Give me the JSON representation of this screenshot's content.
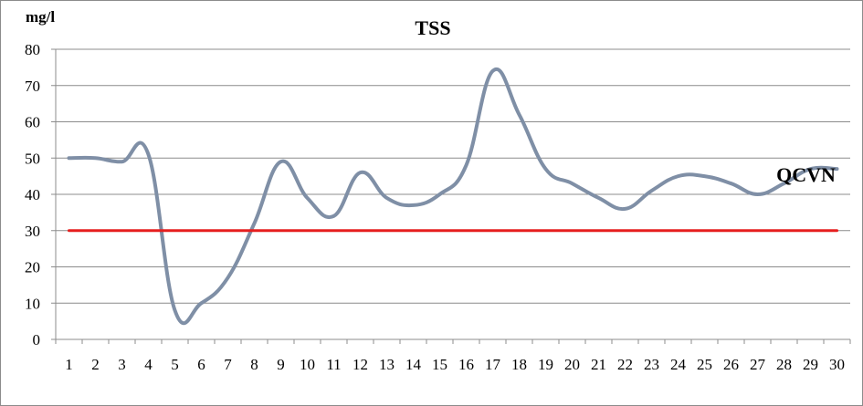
{
  "chart_data": {
    "type": "line",
    "title": "TSS",
    "ylabel": "mg/l",
    "xlabel": "",
    "ylim": [
      0,
      80
    ],
    "yticks": [
      0,
      10,
      20,
      30,
      40,
      50,
      60,
      70,
      80
    ],
    "x": [
      1,
      2,
      3,
      4,
      5,
      6,
      7,
      8,
      9,
      10,
      11,
      12,
      13,
      14,
      15,
      16,
      17,
      18,
      19,
      20,
      21,
      22,
      23,
      24,
      25,
      26,
      27,
      28,
      29,
      30
    ],
    "grid": true,
    "legend": "none",
    "series": [
      {
        "values": [
          50,
          50,
          49,
          51,
          8,
          10,
          17,
          32,
          49,
          39,
          34,
          46,
          39,
          37,
          40,
          48,
          74,
          62,
          47,
          43,
          39,
          36,
          41,
          45,
          45,
          43,
          40,
          43,
          47,
          47
        ],
        "color": "#7f8fa6"
      },
      {
        "values": [
          30,
          30,
          30,
          30,
          30,
          30,
          30,
          30,
          30,
          30,
          30,
          30,
          30,
          30,
          30,
          30,
          30,
          30,
          30,
          30,
          30,
          30,
          30,
          30,
          30,
          30,
          30,
          30,
          30,
          30
        ],
        "color": "#e61e1e"
      }
    ],
    "annotations": [
      {
        "text": "QCVN",
        "x": 29,
        "y": 45
      }
    ]
  }
}
